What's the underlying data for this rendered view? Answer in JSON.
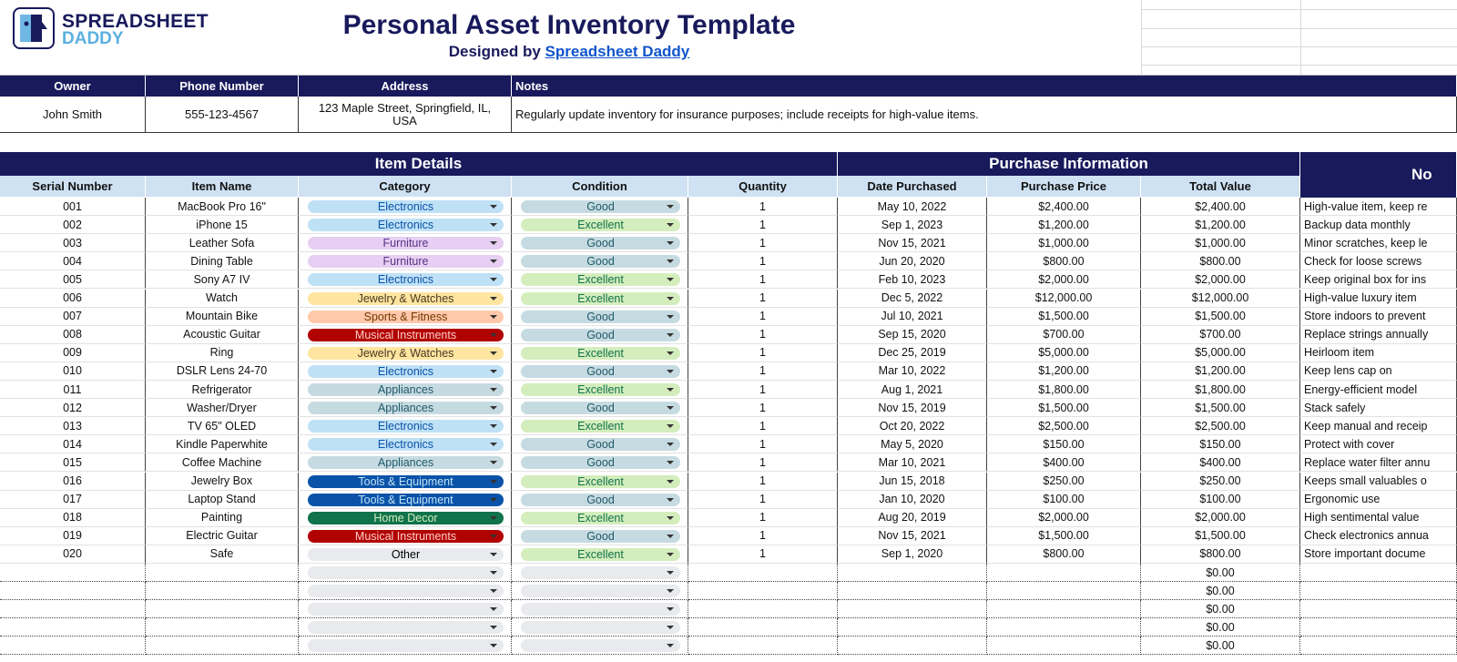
{
  "header": {
    "logo_line1": "SPREADSHEET",
    "logo_line2": "DADDY",
    "title": "Personal Asset Inventory Template",
    "subtitle_prefix": "Designed by",
    "subtitle_link": "Spreadsheet Daddy"
  },
  "owner_info": {
    "headers": [
      "Owner",
      "Phone Number",
      "Address",
      "Notes"
    ],
    "values": [
      "John Smith",
      "555-123-4567",
      "123 Maple Street, Springfield, IL, USA",
      "Regularly update inventory for insurance purposes; include receipts for high-value items."
    ]
  },
  "sections": [
    "Item Details",
    "Purchase Information",
    "No"
  ],
  "columns": [
    "Serial Number",
    "Item Name",
    "Category",
    "Condition",
    "Quantity",
    "Date Purchased",
    "Purchase Price",
    "Total Value"
  ],
  "rows": [
    [
      "001",
      "MacBook Pro 16\"",
      "Electronics",
      "Good",
      "1",
      "May 10, 2022",
      "$2,400.00",
      "$2,400.00",
      "High-value item, keep re"
    ],
    [
      "002",
      "iPhone 15",
      "Electronics",
      "Excellent",
      "1",
      "Sep 1, 2023",
      "$1,200.00",
      "$1,200.00",
      "Backup data monthly"
    ],
    [
      "003",
      "Leather Sofa",
      "Furniture",
      "Good",
      "1",
      "Nov 15, 2021",
      "$1,000.00",
      "$1,000.00",
      "Minor scratches, keep le"
    ],
    [
      "004",
      "Dining Table",
      "Furniture",
      "Good",
      "1",
      "Jun 20, 2020",
      "$800.00",
      "$800.00",
      "Check for loose screws"
    ],
    [
      "005",
      "Sony A7 IV",
      "Electronics",
      "Excellent",
      "1",
      "Feb 10, 2023",
      "$2,000.00",
      "$2,000.00",
      "Keep original box for ins"
    ],
    [
      "006",
      "Watch",
      "Jewelry & Watches",
      "Excellent",
      "1",
      "Dec 5, 2022",
      "$12,000.00",
      "$12,000.00",
      "High-value luxury item"
    ],
    [
      "007",
      "Mountain Bike",
      "Sports & Fitness",
      "Good",
      "1",
      "Jul 10, 2021",
      "$1,500.00",
      "$1,500.00",
      "Store indoors to prevent"
    ],
    [
      "008",
      "Acoustic Guitar",
      "Musical Instruments",
      "Good",
      "1",
      "Sep 15, 2020",
      "$700.00",
      "$700.00",
      "Replace strings annually"
    ],
    [
      "009",
      "Ring",
      "Jewelry & Watches",
      "Excellent",
      "1",
      "Dec 25, 2019",
      "$5,000.00",
      "$5,000.00",
      "Heirloom item"
    ],
    [
      "010",
      "DSLR Lens 24-70",
      "Electronics",
      "Good",
      "1",
      "Mar 10, 2022",
      "$1,200.00",
      "$1,200.00",
      "Keep lens cap on"
    ],
    [
      "011",
      "Refrigerator",
      "Appliances",
      "Excellent",
      "1",
      "Aug 1, 2021",
      "$1,800.00",
      "$1,800.00",
      "Energy-efficient model"
    ],
    [
      "012",
      "Washer/Dryer",
      "Appliances",
      "Good",
      "1",
      "Nov 15, 2019",
      "$1,500.00",
      "$1,500.00",
      "Stack safely"
    ],
    [
      "013",
      "TV 65\" OLED",
      "Electronics",
      "Excellent",
      "1",
      "Oct 20, 2022",
      "$2,500.00",
      "$2,500.00",
      "Keep manual and receip"
    ],
    [
      "014",
      "Kindle Paperwhite",
      "Electronics",
      "Good",
      "1",
      "May 5, 2020",
      "$150.00",
      "$150.00",
      "Protect with cover"
    ],
    [
      "015",
      "Coffee Machine",
      "Appliances",
      "Good",
      "1",
      "Mar 10, 2021",
      "$400.00",
      "$400.00",
      "Replace water filter annu"
    ],
    [
      "016",
      "Jewelry Box",
      "Tools & Equipment",
      "Excellent",
      "1",
      "Jun 15, 2018",
      "$250.00",
      "$250.00",
      "Keeps small valuables o"
    ],
    [
      "017",
      "Laptop Stand",
      "Tools & Equipment",
      "Good",
      "1",
      "Jan 10, 2020",
      "$100.00",
      "$100.00",
      "Ergonomic use"
    ],
    [
      "018",
      "Painting",
      "Home Decor",
      "Excellent",
      "1",
      "Aug 20, 2019",
      "$2,000.00",
      "$2,000.00",
      "High sentimental value"
    ],
    [
      "019",
      "Electric Guitar",
      "Musical Instruments",
      "Good",
      "1",
      "Nov 15, 2021",
      "$1,500.00",
      "$1,500.00",
      "Check electronics annua"
    ],
    [
      "020",
      "Safe",
      "Other",
      "Excellent",
      "1",
      "Sep 1, 2020",
      "$800.00",
      "$800.00",
      "Store important docume"
    ]
  ],
  "empty_row_totals": [
    "$0.00",
    "$0.00",
    "$0.00",
    "$0.00",
    "$0.00"
  ],
  "category_colors": {
    "Electronics": [
      "#bfe1f6",
      "#0a53a8"
    ],
    "Furniture": [
      "#e6cff2",
      "#5a3286"
    ],
    "Jewelry & Watches": [
      "#ffe5a0",
      "#473821"
    ],
    "Sports & Fitness": [
      "#ffc8aa",
      "#753800"
    ],
    "Musical Instruments": [
      "#b10202",
      "#ffcfc9"
    ],
    "Appliances": [
      "#c6dbe1",
      "#215a6c"
    ],
    "Tools & Equipment": [
      "#0a53a8",
      "#bfe1f6"
    ],
    "Home Decor": [
      "#11734b",
      "#d4edbc"
    ],
    "Other": [
      "#e8eaed",
      "#000000"
    ]
  },
  "condition_colors": {
    "Good": [
      "#c6dbe1",
      "#215a6c"
    ],
    "Excellent": [
      "#d4edbc",
      "#11734b"
    ]
  }
}
